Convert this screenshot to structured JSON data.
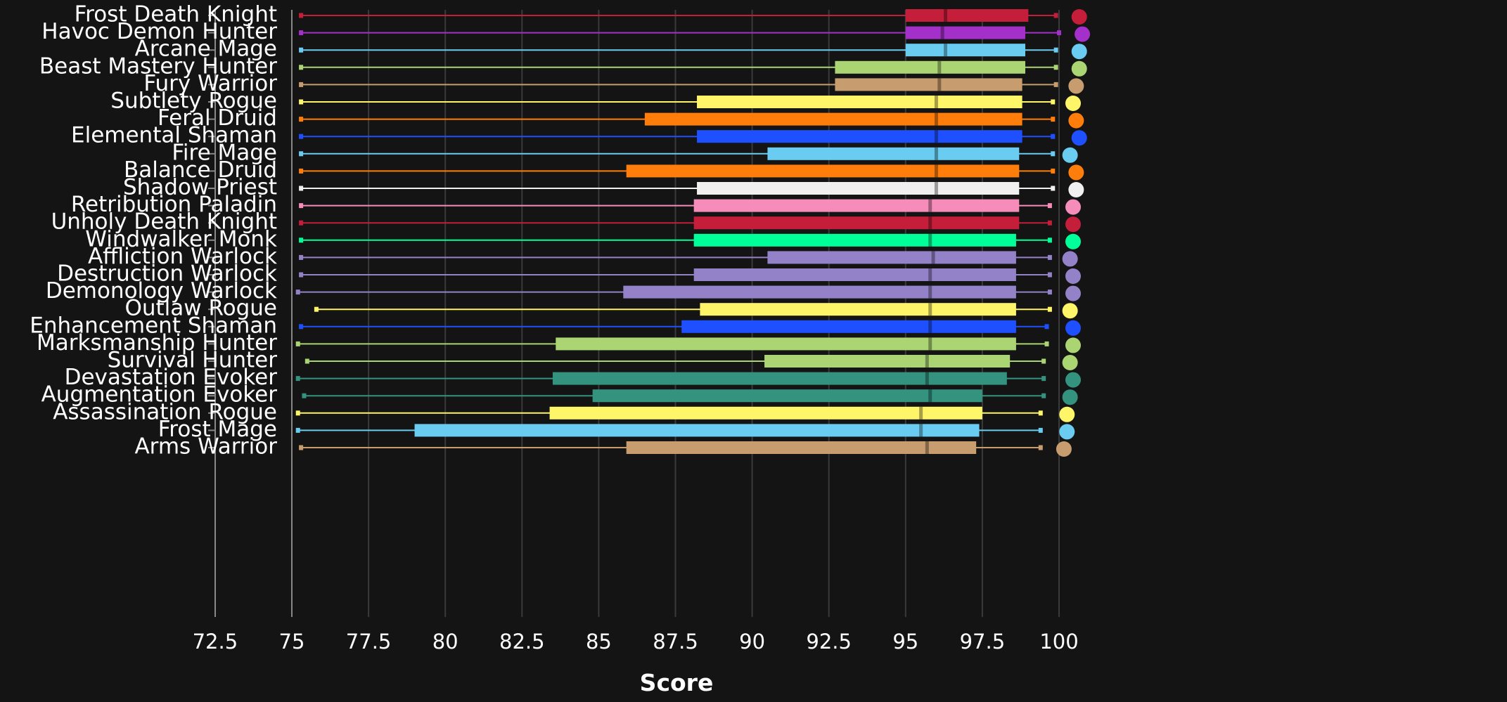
{
  "chart_data": {
    "type": "boxplot",
    "title": "",
    "xlabel": "Score",
    "ylabel": "",
    "xlim": [
      72.5,
      100
    ],
    "x_ticks": [
      "72.5",
      "75",
      "77.5",
      "80",
      "82.5",
      "85",
      "87.5",
      "90",
      "92.5",
      "95",
      "97.5",
      "100"
    ],
    "grid": "vertical",
    "series": [
      {
        "name": "Frost Death Knight",
        "color": "#c41e3a",
        "min": 75.3,
        "q1": 95.0,
        "median": 96.3,
        "q3": 99.0,
        "max": 99.9,
        "top": 100.2
      },
      {
        "name": "Havoc Demon Hunter",
        "color": "#a330c9",
        "min": 75.3,
        "q1": 95.0,
        "median": 96.2,
        "q3": 98.9,
        "max": 100.0,
        "top": 100.3
      },
      {
        "name": "Arcane Mage",
        "color": "#69ccf0",
        "min": 75.3,
        "q1": 95.0,
        "median": 96.3,
        "q3": 98.9,
        "max": 99.9,
        "top": 100.2
      },
      {
        "name": "Beast Mastery Hunter",
        "color": "#abd473",
        "min": 75.3,
        "q1": 92.7,
        "median": 96.1,
        "q3": 98.9,
        "max": 99.9,
        "top": 100.2
      },
      {
        "name": "Fury Warrior",
        "color": "#c79c6e",
        "min": 75.3,
        "q1": 92.7,
        "median": 96.1,
        "q3": 98.8,
        "max": 99.9,
        "top": 100.1
      },
      {
        "name": "Subtlety Rogue",
        "color": "#fff569",
        "min": 75.3,
        "q1": 88.2,
        "median": 96.0,
        "q3": 98.8,
        "max": 99.8,
        "top": 100.0
      },
      {
        "name": "Feral Druid",
        "color": "#ff7d0a",
        "min": 75.3,
        "q1": 86.5,
        "median": 96.0,
        "q3": 98.8,
        "max": 99.8,
        "top": 100.1
      },
      {
        "name": "Elemental Shaman",
        "color": "#1f50ff",
        "min": 75.3,
        "q1": 88.2,
        "median": 96.0,
        "q3": 98.8,
        "max": 99.8,
        "top": 100.2
      },
      {
        "name": "Fire Mage",
        "color": "#69ccf0",
        "min": 75.3,
        "q1": 90.5,
        "median": 96.0,
        "q3": 98.7,
        "max": 99.8,
        "top": 99.9
      },
      {
        "name": "Balance Druid",
        "color": "#ff7d0a",
        "min": 75.3,
        "q1": 85.9,
        "median": 96.0,
        "q3": 98.7,
        "max": 99.8,
        "top": 100.1
      },
      {
        "name": "Shadow Priest",
        "color": "#f0f0f0",
        "min": 75.3,
        "q1": 88.2,
        "median": 96.0,
        "q3": 98.7,
        "max": 99.8,
        "top": 100.1
      },
      {
        "name": "Retribution Paladin",
        "color": "#f58cba",
        "min": 75.3,
        "q1": 88.1,
        "median": 95.8,
        "q3": 98.7,
        "max": 99.7,
        "top": 100.0
      },
      {
        "name": "Unholy Death Knight",
        "color": "#c41e3a",
        "min": 75.3,
        "q1": 88.1,
        "median": 95.8,
        "q3": 98.7,
        "max": 99.7,
        "top": 100.0
      },
      {
        "name": "Windwalker Monk",
        "color": "#00ff98",
        "min": 75.3,
        "q1": 88.1,
        "median": 95.8,
        "q3": 98.6,
        "max": 99.7,
        "top": 100.0
      },
      {
        "name": "Affliction Warlock",
        "color": "#9482c9",
        "min": 75.3,
        "q1": 90.5,
        "median": 95.9,
        "q3": 98.6,
        "max": 99.7,
        "top": 99.9
      },
      {
        "name": "Destruction Warlock",
        "color": "#9482c9",
        "min": 75.3,
        "q1": 88.1,
        "median": 95.8,
        "q3": 98.6,
        "max": 99.7,
        "top": 100.0
      },
      {
        "name": "Demonology Warlock",
        "color": "#9482c9",
        "min": 75.2,
        "q1": 85.8,
        "median": 95.8,
        "q3": 98.6,
        "max": 99.7,
        "top": 100.0
      },
      {
        "name": "Outlaw Rogue",
        "color": "#fff569",
        "min": 75.8,
        "q1": 88.3,
        "median": 95.8,
        "q3": 98.6,
        "max": 99.7,
        "top": 99.9
      },
      {
        "name": "Enhancement Shaman",
        "color": "#1f50ff",
        "min": 75.3,
        "q1": 87.7,
        "median": 95.8,
        "q3": 98.6,
        "max": 99.6,
        "top": 100.0
      },
      {
        "name": "Marksmanship Hunter",
        "color": "#abd473",
        "min": 75.2,
        "q1": 83.6,
        "median": 95.8,
        "q3": 98.6,
        "max": 99.6,
        "top": 100.0
      },
      {
        "name": "Survival Hunter",
        "color": "#abd473",
        "min": 75.5,
        "q1": 90.4,
        "median": 95.7,
        "q3": 98.4,
        "max": 99.5,
        "top": 99.9
      },
      {
        "name": "Devastation Evoker",
        "color": "#33937f",
        "min": 75.2,
        "q1": 83.5,
        "median": 95.7,
        "q3": 98.3,
        "max": 99.5,
        "top": 100.0
      },
      {
        "name": "Augmentation Evoker",
        "color": "#33937f",
        "min": 75.4,
        "q1": 84.8,
        "median": 95.8,
        "q3": 97.5,
        "max": 99.5,
        "top": 99.9
      },
      {
        "name": "Assassination Rogue",
        "color": "#fff569",
        "min": 75.2,
        "q1": 83.4,
        "median": 95.5,
        "q3": 97.5,
        "max": 99.4,
        "top": 99.8
      },
      {
        "name": "Frost Mage",
        "color": "#69ccf0",
        "min": 75.2,
        "q1": 79.0,
        "median": 95.5,
        "q3": 97.4,
        "max": 99.4,
        "top": 99.8
      },
      {
        "name": "Arms Warrior",
        "color": "#c79c6e",
        "min": 75.3,
        "q1": 85.9,
        "median": 95.7,
        "q3": 97.3,
        "max": 99.4,
        "top": 99.7
      }
    ]
  }
}
